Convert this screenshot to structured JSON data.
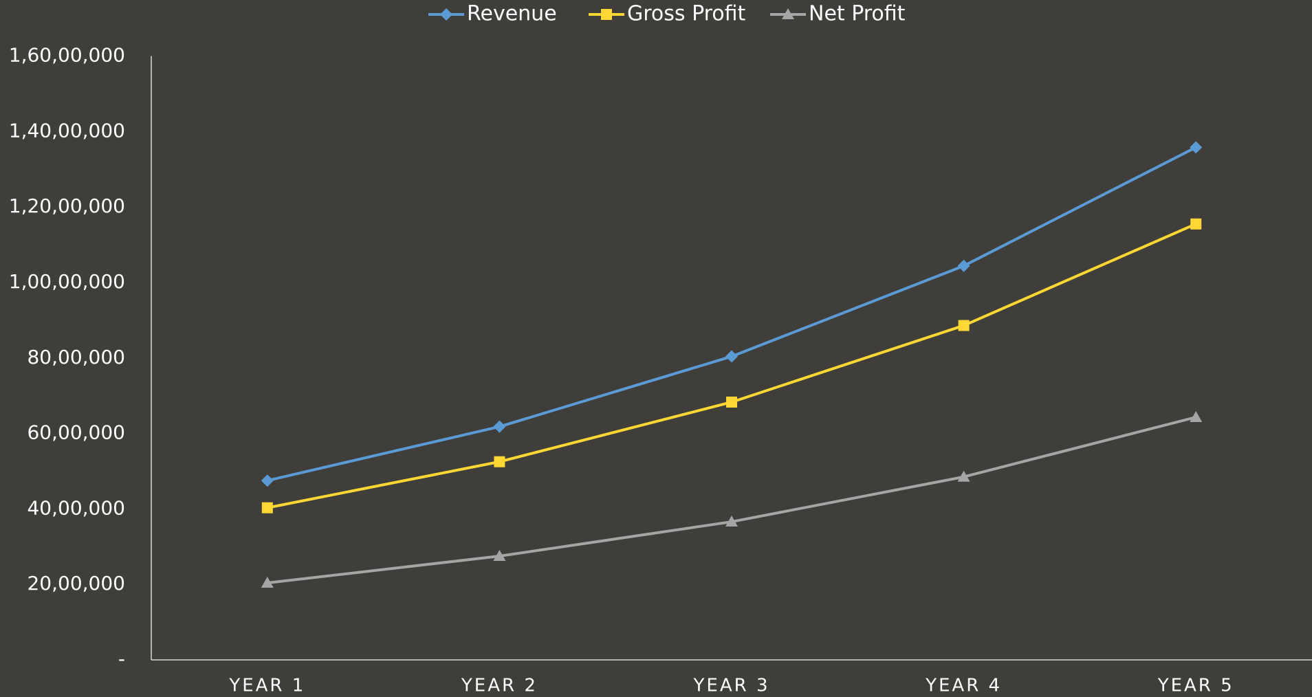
{
  "chart_data": {
    "type": "line",
    "categories": [
      "YEAR 1",
      "YEAR 2",
      "YEAR 3",
      "YEAR 4",
      "YEAR 5"
    ],
    "series": [
      {
        "name": "Revenue",
        "color": "#5b9bd5",
        "marker": "diamond",
        "values": [
          4750000,
          6180000,
          8040000,
          10440000,
          13580000
        ]
      },
      {
        "name": "Gross Profit",
        "color": "#fdd835",
        "marker": "square",
        "values": [
          4030000,
          5250000,
          6830000,
          8860000,
          11550000
        ]
      },
      {
        "name": "Net Profit",
        "color": "#a5a5a5",
        "marker": "triangle",
        "values": [
          2040000,
          2750000,
          3660000,
          4850000,
          6430000
        ]
      }
    ],
    "ylim": [
      0,
      16000000
    ],
    "yticks": [
      {
        "value": 0,
        "label": "-"
      },
      {
        "value": 2000000,
        "label": "20,00,000"
      },
      {
        "value": 4000000,
        "label": "40,00,000"
      },
      {
        "value": 6000000,
        "label": "60,00,000"
      },
      {
        "value": 8000000,
        "label": "80,00,000"
      },
      {
        "value": 10000000,
        "label": "1,00,00,000"
      },
      {
        "value": 12000000,
        "label": "1,20,00,000"
      },
      {
        "value": 14000000,
        "label": "1,40,00,000"
      },
      {
        "value": 16000000,
        "label": "1,60,00,000"
      }
    ],
    "grid": false,
    "legend": "top"
  }
}
